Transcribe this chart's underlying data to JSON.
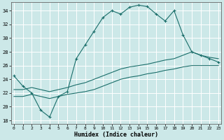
{
  "xlabel": "Humidex (Indice chaleur)",
  "xlim": [
    -0.3,
    23.3
  ],
  "ylim": [
    17.5,
    35.2
  ],
  "xticks": [
    0,
    1,
    2,
    3,
    4,
    5,
    6,
    7,
    8,
    9,
    10,
    11,
    12,
    13,
    14,
    15,
    16,
    17,
    18,
    19,
    20,
    21,
    22,
    23
  ],
  "yticks": [
    18,
    20,
    22,
    24,
    26,
    28,
    30,
    32,
    34
  ],
  "background_color": "#cce8e8",
  "grid_color": "#b0d8d8",
  "line_color": "#1a6e6a",
  "line1_x": [
    0,
    1,
    2,
    3,
    4,
    5,
    6,
    7,
    8,
    9,
    10,
    11,
    12,
    13,
    14,
    15,
    16,
    17,
    18,
    19,
    20,
    21,
    22,
    23
  ],
  "line1_y": [
    24.5,
    23.0,
    22.0,
    19.5,
    18.5,
    21.5,
    22.2,
    27.0,
    29.0,
    31.0,
    33.0,
    34.0,
    33.5,
    34.5,
    34.8,
    34.6,
    33.5,
    32.5,
    34.0,
    30.5,
    28.0,
    27.5,
    27.0,
    26.5
  ],
  "line2_x": [
    0,
    1,
    2,
    3,
    4,
    5,
    6,
    7,
    8,
    9,
    10,
    11,
    12,
    13,
    14,
    15,
    16,
    17,
    18,
    19,
    20,
    21,
    22,
    23
  ],
  "line2_y": [
    22.5,
    22.5,
    22.8,
    22.5,
    22.2,
    22.5,
    22.8,
    23.2,
    23.5,
    24.0,
    24.5,
    25.0,
    25.5,
    25.8,
    26.0,
    26.2,
    26.5,
    26.8,
    27.0,
    27.5,
    28.0,
    27.5,
    27.2,
    27.0
  ],
  "line3_x": [
    0,
    1,
    2,
    3,
    4,
    5,
    6,
    7,
    8,
    9,
    10,
    11,
    12,
    13,
    14,
    15,
    16,
    17,
    18,
    19,
    20,
    21,
    22,
    23
  ],
  "line3_y": [
    21.5,
    21.5,
    21.8,
    21.5,
    21.2,
    21.5,
    21.8,
    22.0,
    22.2,
    22.5,
    23.0,
    23.5,
    24.0,
    24.3,
    24.5,
    24.8,
    25.0,
    25.3,
    25.5,
    25.8,
    26.0,
    26.0,
    26.0,
    26.0
  ]
}
